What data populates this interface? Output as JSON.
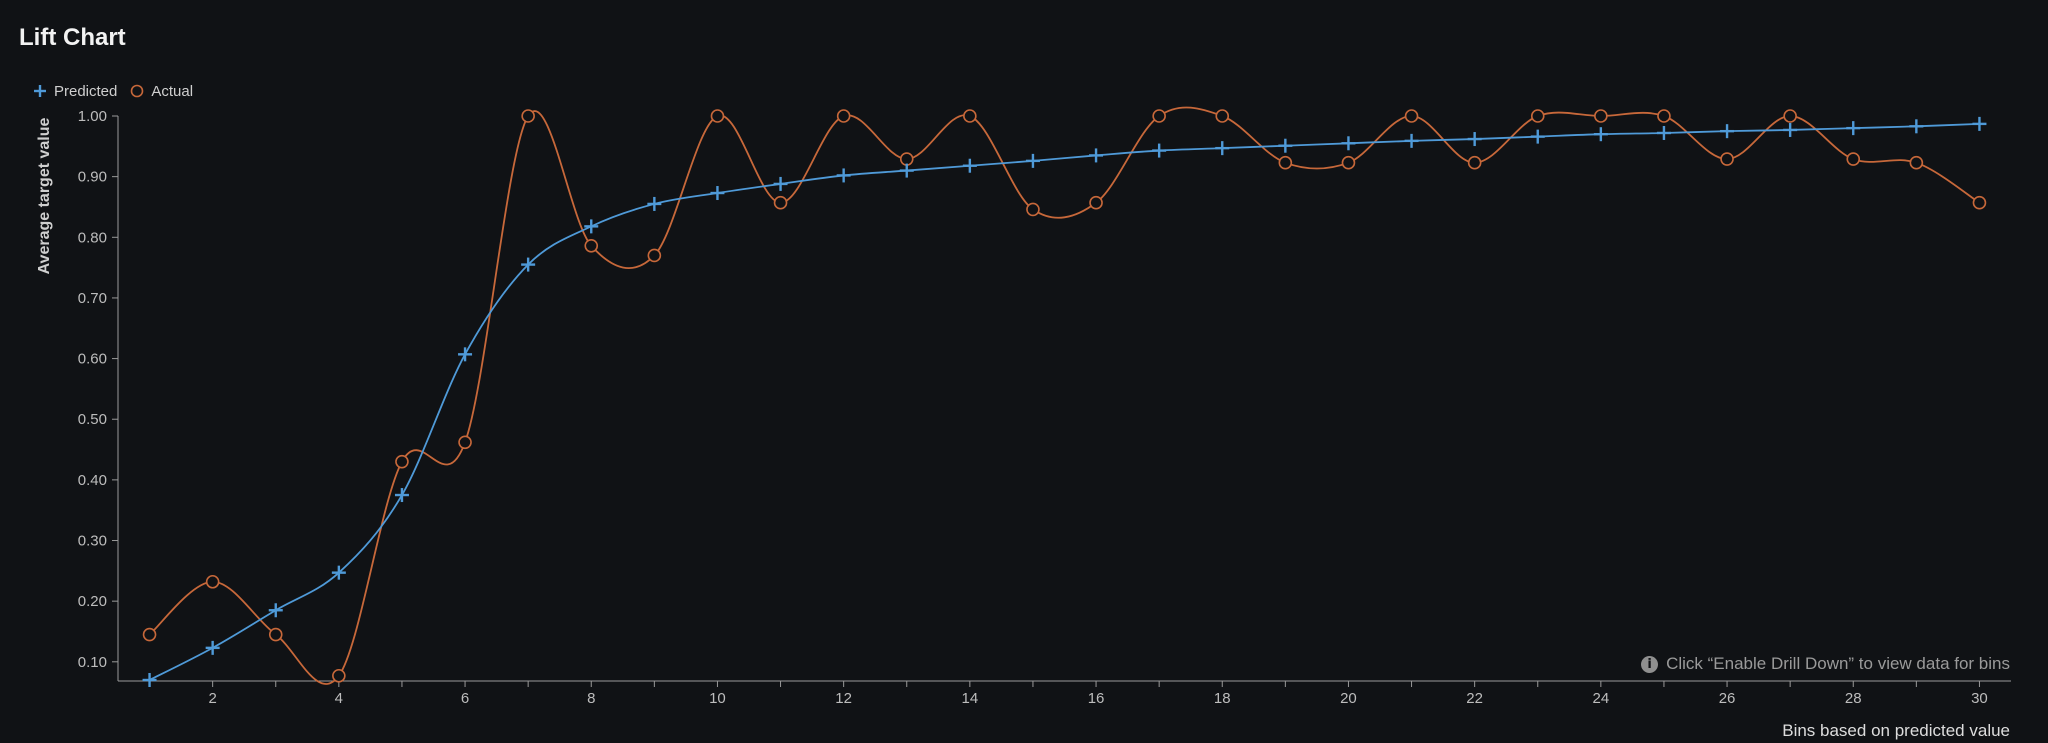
{
  "page": {
    "title": "Lift Chart",
    "hint_icon": "info-icon",
    "hint_icon_glyph": "i",
    "hint_text": "Click “Enable Drill Down” to view data for bins"
  },
  "chart_data": {
    "type": "line",
    "title": "Lift Chart",
    "xlabel": "Bins based on predicted value",
    "ylabel": "Average target value",
    "x": [
      1,
      2,
      3,
      4,
      5,
      6,
      7,
      8,
      9,
      10,
      11,
      12,
      13,
      14,
      15,
      16,
      17,
      18,
      19,
      20,
      21,
      22,
      23,
      24,
      25,
      26,
      27,
      28,
      29,
      30
    ],
    "xlim": [
      0.5,
      30.5
    ],
    "ylim": [
      0.07,
      1.0
    ],
    "x_ticks": [
      2,
      4,
      6,
      8,
      10,
      12,
      14,
      16,
      18,
      20,
      22,
      24,
      26,
      28,
      30
    ],
    "x_tick_labels": [
      "2",
      "4",
      "6",
      "8",
      "10",
      "12",
      "14",
      "16",
      "18",
      "20",
      "22",
      "24",
      "26",
      "28",
      "30"
    ],
    "y_ticks": [
      0.1,
      0.2,
      0.3,
      0.4,
      0.5,
      0.6,
      0.7,
      0.8,
      0.9,
      1.0
    ],
    "y_tick_labels": [
      "0.10",
      "0.20",
      "0.30",
      "0.40",
      "0.50",
      "0.60",
      "0.70",
      "0.80",
      "0.90",
      "1.00"
    ],
    "grid": false,
    "legend_position": "top-left",
    "series": [
      {
        "name": "Predicted",
        "marker": "plus",
        "color": "#4f9ad8",
        "values": [
          0.07,
          0.123,
          0.185,
          0.247,
          0.375,
          0.607,
          0.755,
          0.818,
          0.855,
          0.873,
          0.888,
          0.902,
          0.91,
          0.918,
          0.926,
          0.935,
          0.943,
          0.947,
          0.951,
          0.955,
          0.959,
          0.962,
          0.966,
          0.97,
          0.972,
          0.975,
          0.977,
          0.98,
          0.983,
          0.987
        ]
      },
      {
        "name": "Actual",
        "marker": "circle",
        "color": "#c7683a",
        "values": [
          0.145,
          0.232,
          0.145,
          0.077,
          0.43,
          0.462,
          1.0,
          0.786,
          0.77,
          1.0,
          0.857,
          1.0,
          0.929,
          1.0,
          0.846,
          0.857,
          1.0,
          1.0,
          0.923,
          0.923,
          1.0,
          0.923,
          1.0,
          1.0,
          1.0,
          0.929,
          1.0,
          0.929,
          0.923,
          0.857
        ]
      }
    ]
  }
}
